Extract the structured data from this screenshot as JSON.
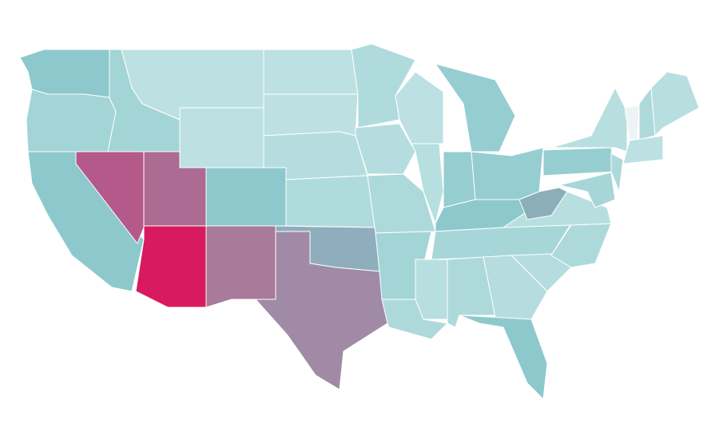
{
  "map": {
    "regions": [
      {
        "color": "#8dc9cc"
      },
      {
        "color": "#a3d4d6"
      },
      {
        "color": "#8dc9cc"
      },
      {
        "color": "#a3d4d6"
      },
      {
        "color": "#b5598a"
      },
      {
        "color": "#bde1e2"
      },
      {
        "color": "#bde1e2"
      },
      {
        "color": "#ab6b93"
      },
      {
        "color": "#d81b60"
      },
      {
        "color": "#8dc9cc"
      },
      {
        "color": "#a97a9a"
      },
      {
        "color": "#bde1e2"
      },
      {
        "color": "#bde1e2"
      },
      {
        "color": "#b5dddf"
      },
      {
        "color": "#b0dbdc"
      },
      {
        "color": "#8faebd"
      },
      {
        "color": "#a08aa6"
      },
      {
        "color": "#b0dbdc"
      },
      {
        "color": "#b5dddf"
      },
      {
        "color": "#aed9db"
      },
      {
        "color": "#a3d4d6"
      },
      {
        "color": "#aed9db"
      },
      {
        "color": "#bde1e2"
      },
      {
        "color": "#b8dfe0"
      },
      {
        "color": "#96cdd0"
      },
      {
        "color": "#96cdd0"
      },
      {
        "color": "#96cdd0"
      },
      {
        "color": "#8dc9cc"
      },
      {
        "color": "#a7d6d8"
      },
      {
        "color": "#b8dfe0"
      },
      {
        "color": "#aed9db"
      },
      {
        "color": "#b5dddf"
      },
      {
        "color": "#8dc9cc"
      },
      {
        "color": "#b5dddf"
      },
      {
        "color": "#aed9db"
      },
      {
        "color": "#b8dfe0"
      },
      {
        "color": "#8caeb8"
      },
      {
        "color": "#96cdd0"
      },
      {
        "color": "#b8dfe0"
      },
      {
        "color": "#f0f3f5"
      },
      {
        "color": "#aed9db"
      },
      {
        "color": "#b8dfe0"
      },
      {
        "color": "#bde1e2"
      },
      {
        "color": "#aed9db"
      },
      {
        "color": "#a7d6d8"
      }
    ]
  }
}
